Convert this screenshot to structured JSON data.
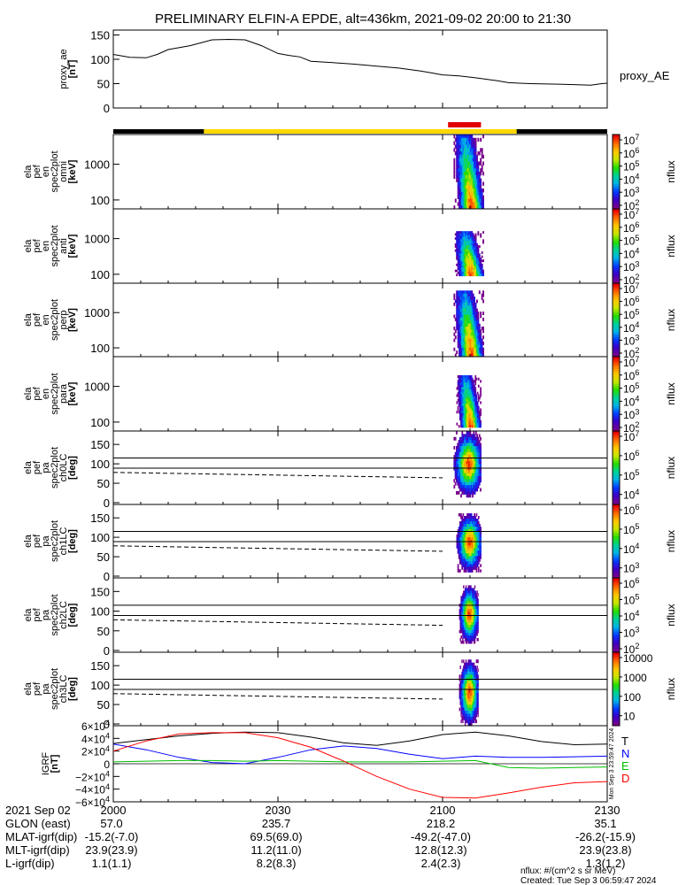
{
  "title": "PRELIMINARY ELFIN-A EPDE, alt=436km, 2021-09-02 20:00 to 21:30",
  "chart_data": [
    {
      "type": "line",
      "name_label": "proxy_AE",
      "ylabel_lines": [
        "proxy_ae",
        "[nT]"
      ],
      "ylim": [
        0,
        160
      ],
      "yticks": [
        "150",
        "100",
        "50",
        "0"
      ],
      "ytick_values": [
        150,
        100,
        50,
        0
      ],
      "x_minutes": [
        0,
        3,
        6,
        8,
        10,
        14,
        18,
        21,
        24,
        27,
        30,
        32,
        34,
        36,
        40,
        44,
        48,
        52,
        56,
        58,
        60,
        63,
        66,
        70,
        72,
        74,
        76,
        80,
        84,
        87,
        89,
        90
      ],
      "values": [
        110,
        104,
        103,
        110,
        120,
        128,
        140,
        141,
        140,
        128,
        112,
        108,
        105,
        96,
        93,
        90,
        86,
        82,
        76,
        72,
        68,
        66,
        62,
        56,
        52,
        51,
        50,
        49,
        48,
        47,
        50,
        51
      ]
    },
    {
      "type": "heatmap",
      "ylabel_lines": [
        "ela",
        "pef",
        "en",
        "spec2plot",
        "omni",
        "[keV]"
      ],
      "yticks": [
        "1000",
        "100"
      ],
      "cbar_label": "nflux",
      "cbar_ticks": [
        "10^7",
        "10^6",
        "10^5",
        "10^4",
        "10^3",
        "10^2"
      ]
    },
    {
      "type": "heatmap",
      "ylabel_lines": [
        "ela",
        "pef",
        "en",
        "spec2plot",
        "anti",
        "[keV]"
      ],
      "yticks": [
        "1000",
        "100"
      ],
      "cbar_label": "nflux",
      "cbar_ticks": [
        "10^7",
        "10^6",
        "10^5",
        "10^4",
        "10^3",
        "10^2"
      ]
    },
    {
      "type": "heatmap",
      "ylabel_lines": [
        "ela",
        "pef",
        "en",
        "spec2plot",
        "perp",
        "[keV]"
      ],
      "yticks": [
        "1000",
        "100"
      ],
      "cbar_label": "nflux",
      "cbar_ticks": [
        "10^7",
        "10^6",
        "10^5",
        "10^4",
        "10^3",
        "10^2"
      ]
    },
    {
      "type": "heatmap",
      "ylabel_lines": [
        "ela",
        "pef",
        "en",
        "spec2plot",
        "para",
        "[keV]"
      ],
      "yticks": [
        "1000",
        "100"
      ],
      "cbar_label": "nflux",
      "cbar_ticks": [
        "10^7",
        "10^6",
        "10^5",
        "10^4",
        "10^3",
        "10^2"
      ]
    },
    {
      "type": "heatmap",
      "ylabel_lines": [
        "ela",
        "pef",
        "pa",
        "spec2plot",
        "ch0LC",
        "[deg]"
      ],
      "yticks": [
        "150",
        "100",
        "50",
        "0"
      ],
      "cbar_label": "nflux",
      "cbar_ticks": [
        "10^7",
        "10^6",
        "10^5",
        "10^4"
      ]
    },
    {
      "type": "heatmap",
      "ylabel_lines": [
        "ela",
        "pef",
        "pa",
        "spec2plot",
        "ch1LC",
        "[deg]"
      ],
      "yticks": [
        "150",
        "100",
        "50",
        "0"
      ],
      "cbar_label": "nflux",
      "cbar_ticks": [
        "10^6",
        "10^5",
        "10^4",
        "10^3"
      ]
    },
    {
      "type": "heatmap",
      "ylabel_lines": [
        "ela",
        "pef",
        "pa",
        "spec2plot",
        "ch2LC",
        "[deg]"
      ],
      "yticks": [
        "150",
        "100",
        "50",
        "0"
      ],
      "cbar_label": "nflux",
      "cbar_ticks": [
        "10^6",
        "10^5",
        "10^4",
        "10^3",
        "10^2"
      ]
    },
    {
      "type": "heatmap",
      "ylabel_lines": [
        "ela",
        "pef",
        "pa",
        "spec2plot",
        "ch3LC",
        "[deg]"
      ],
      "yticks": [
        "150",
        "100",
        "50",
        "0"
      ],
      "cbar_label": "nflux",
      "cbar_ticks": [
        "10000",
        "1000",
        "100",
        "10"
      ]
    },
    {
      "type": "line",
      "ylabel_lines": [
        "IGRF",
        "[nT]"
      ],
      "ylim": [
        -60000,
        60000
      ],
      "yticks": [
        "6×10^4",
        "4×10^4",
        "2×10^4",
        "0",
        "−2×10^4",
        "−4×10^4",
        "−6×10^4"
      ],
      "ytick_values": [
        60000,
        40000,
        20000,
        0,
        -20000,
        -40000,
        -60000
      ],
      "x_minutes": [
        0,
        6,
        12,
        18,
        24,
        30,
        36,
        42,
        48,
        54,
        60,
        66,
        72,
        78,
        84,
        90
      ],
      "series": [
        {
          "name": "T",
          "color": "#000000",
          "values": [
            32000,
            38000,
            44000,
            48000,
            50000,
            49000,
            42000,
            33000,
            29000,
            36000,
            46000,
            50000,
            44000,
            35000,
            30000,
            31000
          ]
        },
        {
          "name": "N",
          "color": "#0000ff",
          "values": [
            31000,
            22000,
            10000,
            2000,
            0,
            10000,
            22000,
            28000,
            24000,
            15000,
            8000,
            12000,
            10000,
            10000,
            11000,
            12000
          ]
        },
        {
          "name": "E",
          "color": "#00c000",
          "values": [
            3000,
            4000,
            5000,
            5000,
            4000,
            5000,
            4000,
            3000,
            3000,
            3000,
            4000,
            5000,
            -6000,
            -7000,
            -6000,
            -5000
          ]
        },
        {
          "name": "D",
          "color": "#ff0000",
          "values": [
            20000,
            36000,
            47000,
            49000,
            49000,
            41000,
            26000,
            4000,
            -20000,
            -40000,
            -53000,
            -54000,
            -46000,
            -37000,
            -30000,
            -28000
          ]
        }
      ]
    }
  ],
  "xticks": {
    "minutes": [
      0,
      30,
      60,
      90
    ],
    "labels": [
      "2000",
      "2030",
      "2100",
      "2130"
    ]
  },
  "ephemeris": {
    "date_label": "2021 Sep 02",
    "rows": [
      {
        "label": "GLON (east)",
        "values": [
          "57.0",
          "235.7",
          "218.2",
          "35.1"
        ]
      },
      {
        "label": "MLAT-igrf(dip)",
        "values": [
          "-15.2(-7.0)",
          "69.5(69.0)",
          "-49.2(-47.0)",
          "-26.2(-15.9)"
        ]
      },
      {
        "label": "MLT-igrf(dip)",
        "values": [
          "23.9(23.9)",
          "11.2(11.0)",
          "12.8(12.3)",
          "23.9(23.8)"
        ]
      },
      {
        "label": "L-igrf(dip)",
        "values": [
          "1.1(1.1)",
          "8.2(8.3)",
          "2.4(2.3)",
          "1.3(1.2)"
        ]
      }
    ]
  },
  "footer": {
    "units": "nflux: #/(cm^2 s sr MeV)",
    "created": "Created: Tue Sep  3 06:59:47 2024",
    "vertical_stamp": "Mon Sep 3 23:59:47 2024"
  }
}
